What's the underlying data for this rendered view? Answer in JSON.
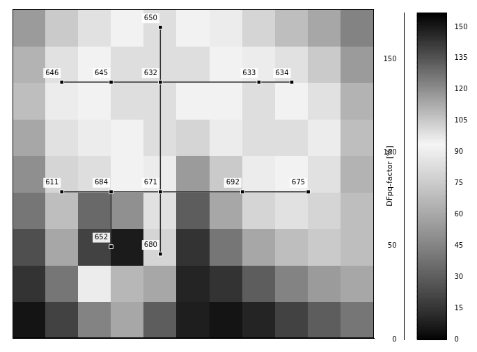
{
  "chart_data": {
    "type": "heatmap",
    "z_label": "DFpq-factor [%]",
    "x": [
      0,
      1,
      2,
      3,
      4,
      5,
      6,
      7,
      8,
      9,
      10
    ],
    "y": [
      0,
      1,
      2,
      3,
      4,
      5,
      6,
      7,
      8
    ],
    "cells": [
      [
        5,
        20,
        45,
        60,
        30,
        8,
        5,
        10,
        20,
        30,
        40
      ],
      [
        15,
        40,
        90,
        110,
        60,
        10,
        15,
        30,
        45,
        55,
        60
      ],
      [
        25,
        60,
        140,
        150,
        80,
        15,
        40,
        60,
        70,
        75,
        70
      ],
      [
        40,
        70,
        130,
        120,
        85,
        30,
        60,
        80,
        85,
        80,
        70
      ],
      [
        50,
        80,
        100,
        95,
        90,
        55,
        75,
        90,
        95,
        85,
        65
      ],
      [
        60,
        85,
        90,
        95,
        100,
        80,
        90,
        100,
        100,
        90,
        70
      ],
      [
        70,
        90,
        95,
        100,
        100,
        95,
        95,
        100,
        95,
        85,
        65
      ],
      [
        65,
        85,
        95,
        100,
        100,
        100,
        95,
        90,
        85,
        75,
        55
      ],
      [
        55,
        75,
        85,
        95,
        100,
        95,
        90,
        80,
        70,
        60,
        45
      ]
    ],
    "xlim": [
      -0.5,
      10.5
    ],
    "ylim": [
      -0.5,
      8.5
    ],
    "tick_labels": false,
    "zlim": [
      0,
      175
    ],
    "zticks": [
      0,
      50,
      100,
      150
    ],
    "colorbar": {
      "range": [
        0,
        157
      ],
      "ticks": [
        0,
        15,
        30,
        45,
        60,
        75,
        90,
        105,
        120,
        135,
        150
      ]
    },
    "nodes": [
      {
        "label": "650",
        "x": 4,
        "y": 8
      },
      {
        "label": "632",
        "x": 4,
        "y": 6.5
      },
      {
        "label": "633",
        "x": 7,
        "y": 6.5
      },
      {
        "label": "634",
        "x": 8,
        "y": 6.5
      },
      {
        "label": "645",
        "x": 2.5,
        "y": 6.5
      },
      {
        "label": "646",
        "x": 1,
        "y": 6.5
      },
      {
        "label": "671",
        "x": 4,
        "y": 3.5
      },
      {
        "label": "684",
        "x": 2.5,
        "y": 3.5
      },
      {
        "label": "611",
        "x": 1,
        "y": 3.5
      },
      {
        "label": "652",
        "x": 2.5,
        "y": 2
      },
      {
        "label": "692",
        "x": 6.5,
        "y": 3.5
      },
      {
        "label": "675",
        "x": 8.5,
        "y": 3.5
      },
      {
        "label": "680",
        "x": 4,
        "y": 1.8
      }
    ],
    "edges": [
      [
        "650",
        "632"
      ],
      [
        "632",
        "633"
      ],
      [
        "633",
        "634"
      ],
      [
        "632",
        "645"
      ],
      [
        "645",
        "646"
      ],
      [
        "632",
        "671"
      ],
      [
        "671",
        "684"
      ],
      [
        "684",
        "611"
      ],
      [
        "684",
        "652"
      ],
      [
        "671",
        "692"
      ],
      [
        "692",
        "675"
      ],
      [
        "671",
        "680"
      ]
    ]
  }
}
